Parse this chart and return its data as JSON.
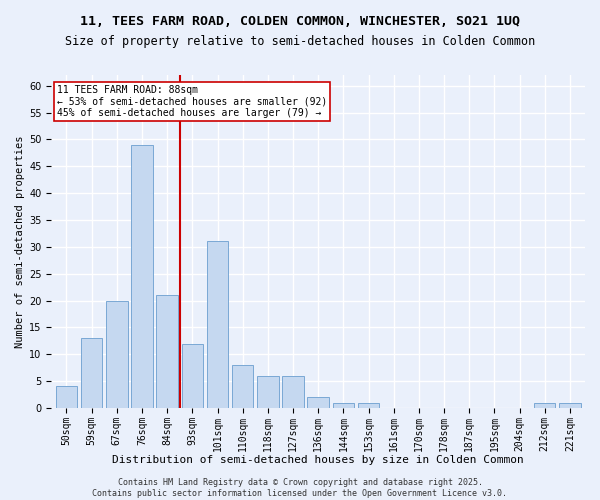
{
  "title": "11, TEES FARM ROAD, COLDEN COMMON, WINCHESTER, SO21 1UQ",
  "subtitle": "Size of property relative to semi-detached houses in Colden Common",
  "xlabel": "Distribution of semi-detached houses by size in Colden Common",
  "ylabel": "Number of semi-detached properties",
  "categories": [
    "50sqm",
    "59sqm",
    "67sqm",
    "76sqm",
    "84sqm",
    "93sqm",
    "101sqm",
    "110sqm",
    "118sqm",
    "127sqm",
    "136sqm",
    "144sqm",
    "153sqm",
    "161sqm",
    "170sqm",
    "178sqm",
    "187sqm",
    "195sqm",
    "204sqm",
    "212sqm",
    "221sqm"
  ],
  "values": [
    4,
    13,
    20,
    49,
    21,
    12,
    31,
    8,
    6,
    6,
    2,
    1,
    1,
    0,
    0,
    0,
    0,
    0,
    0,
    1,
    1
  ],
  "bar_color": "#c5d8f0",
  "bar_edge_color": "#7aa8d4",
  "background_color": "#eaf0fb",
  "grid_color": "#ffffff",
  "vline_x": 4.5,
  "vline_color": "#cc0000",
  "annotation_text": "11 TEES FARM ROAD: 88sqm\n← 53% of semi-detached houses are smaller (92)\n45% of semi-detached houses are larger (79) →",
  "annotation_box_color": "#ffffff",
  "annotation_box_edge": "#cc0000",
  "ylim": [
    0,
    62
  ],
  "yticks": [
    0,
    5,
    10,
    15,
    20,
    25,
    30,
    35,
    40,
    45,
    50,
    55,
    60
  ],
  "footnote": "Contains HM Land Registry data © Crown copyright and database right 2025.\nContains public sector information licensed under the Open Government Licence v3.0.",
  "title_fontsize": 9.5,
  "subtitle_fontsize": 8.5,
  "xlabel_fontsize": 8,
  "ylabel_fontsize": 7.5,
  "tick_fontsize": 7,
  "annotation_fontsize": 7,
  "footnote_fontsize": 6
}
